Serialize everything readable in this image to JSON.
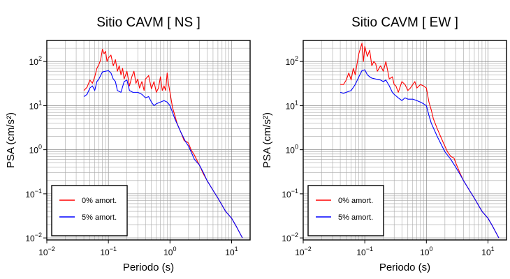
{
  "chart_data": [
    {
      "type": "line",
      "title": "Sitio CAVM [ NS ]",
      "xlabel": "Periodo (s)",
      "ylabel": "PSA (cm/s²)",
      "xscale": "log",
      "yscale": "log",
      "xlim": [
        0.01,
        20
      ],
      "ylim": [
        0.009,
        300
      ],
      "grid": true,
      "legend_position": "bottom-left",
      "xticks": [
        {
          "base": "10",
          "exp": "−2",
          "value": 0.01
        },
        {
          "base": "10",
          "exp": "−1",
          "value": 0.1
        },
        {
          "base": "10",
          "exp": "0",
          "value": 1
        },
        {
          "base": "10",
          "exp": "1",
          "value": 10
        }
      ],
      "yticks": [
        {
          "base": "10",
          "exp": "−2",
          "value": 0.01
        },
        {
          "base": "10",
          "exp": "−1",
          "value": 0.1
        },
        {
          "base": "10",
          "exp": "0",
          "value": 1
        },
        {
          "base": "10",
          "exp": "1",
          "value": 10
        },
        {
          "base": "10",
          "exp": "2",
          "value": 100
        }
      ],
      "series": [
        {
          "name": "0% amort.",
          "color": "#ff0000",
          "points": [
            [
              0.04,
              22
            ],
            [
              0.045,
              26
            ],
            [
              0.05,
              38
            ],
            [
              0.055,
              32
            ],
            [
              0.06,
              45
            ],
            [
              0.065,
              70
            ],
            [
              0.07,
              85
            ],
            [
              0.075,
              110
            ],
            [
              0.08,
              190
            ],
            [
              0.085,
              150
            ],
            [
              0.09,
              170
            ],
            [
              0.095,
              100
            ],
            [
              0.1,
              120
            ],
            [
              0.11,
              140
            ],
            [
              0.12,
              80
            ],
            [
              0.13,
              110
            ],
            [
              0.14,
              60
            ],
            [
              0.15,
              80
            ],
            [
              0.16,
              50
            ],
            [
              0.17,
              70
            ],
            [
              0.18,
              40
            ],
            [
              0.2,
              60
            ],
            [
              0.22,
              28
            ],
            [
              0.24,
              45
            ],
            [
              0.26,
              60
            ],
            [
              0.28,
              32
            ],
            [
              0.3,
              40
            ],
            [
              0.32,
              25
            ],
            [
              0.35,
              35
            ],
            [
              0.38,
              22
            ],
            [
              0.4,
              40
            ],
            [
              0.45,
              48
            ],
            [
              0.5,
              24
            ],
            [
              0.55,
              35
            ],
            [
              0.6,
              20
            ],
            [
              0.65,
              25
            ],
            [
              0.7,
              45
            ],
            [
              0.75,
              22
            ],
            [
              0.8,
              28
            ],
            [
              0.85,
              22
            ],
            [
              0.9,
              55
            ],
            [
              0.95,
              30
            ],
            [
              1.0,
              20
            ],
            [
              1.1,
              9
            ],
            [
              1.2,
              6
            ],
            [
              1.3,
              4
            ],
            [
              1.5,
              2.5
            ],
            [
              1.7,
              1.6
            ],
            [
              1.9,
              1.5
            ],
            [
              2.0,
              1.4
            ],
            [
              2.2,
              1.0
            ],
            [
              2.5,
              0.75
            ],
            [
              2.7,
              0.6
            ],
            [
              3.0,
              0.45
            ],
            [
              3.5,
              0.28
            ],
            [
              4.0,
              0.2
            ],
            [
              5.0,
              0.12
            ],
            [
              6.0,
              0.08
            ],
            [
              8.0,
              0.04
            ],
            [
              10.0,
              0.028
            ],
            [
              12.0,
              0.018
            ],
            [
              15.0,
              0.01
            ]
          ]
        },
        {
          "name": "5% amort.",
          "color": "#0000ff",
          "points": [
            [
              0.04,
              16
            ],
            [
              0.045,
              18
            ],
            [
              0.05,
              25
            ],
            [
              0.055,
              28
            ],
            [
              0.06,
              22
            ],
            [
              0.065,
              35
            ],
            [
              0.07,
              40
            ],
            [
              0.08,
              58
            ],
            [
              0.09,
              60
            ],
            [
              0.1,
              62
            ],
            [
              0.11,
              55
            ],
            [
              0.12,
              40
            ],
            [
              0.13,
              35
            ],
            [
              0.14,
              22
            ],
            [
              0.16,
              20
            ],
            [
              0.18,
              35
            ],
            [
              0.2,
              38
            ],
            [
              0.22,
              22
            ],
            [
              0.25,
              20
            ],
            [
              0.3,
              20
            ],
            [
              0.35,
              18
            ],
            [
              0.4,
              15
            ],
            [
              0.45,
              16
            ],
            [
              0.5,
              12
            ],
            [
              0.55,
              10
            ],
            [
              0.6,
              11
            ],
            [
              0.7,
              12
            ],
            [
              0.8,
              13
            ],
            [
              0.9,
              12
            ],
            [
              1.0,
              10
            ],
            [
              1.1,
              7
            ],
            [
              1.2,
              5
            ],
            [
              1.5,
              2.5
            ],
            [
              1.8,
              1.5
            ],
            [
              2.0,
              1.2
            ],
            [
              2.2,
              0.9
            ],
            [
              2.5,
              0.6
            ],
            [
              3.0,
              0.45
            ],
            [
              3.5,
              0.3
            ],
            [
              4.0,
              0.2
            ],
            [
              5.0,
              0.12
            ],
            [
              6.0,
              0.08
            ],
            [
              8.0,
              0.04
            ],
            [
              10.0,
              0.028
            ],
            [
              12.0,
              0.018
            ],
            [
              15.0,
              0.01
            ]
          ]
        }
      ]
    },
    {
      "type": "line",
      "title": "Sitio CAVM [ EW ]",
      "xlabel": "Periodo (s)",
      "ylabel": "PSA (cm/s²)",
      "xscale": "log",
      "yscale": "log",
      "xlim": [
        0.01,
        20
      ],
      "ylim": [
        0.009,
        300
      ],
      "grid": true,
      "legend_position": "bottom-left",
      "xticks": [
        {
          "base": "10",
          "exp": "−2",
          "value": 0.01
        },
        {
          "base": "10",
          "exp": "−1",
          "value": 0.1
        },
        {
          "base": "10",
          "exp": "0",
          "value": 1
        },
        {
          "base": "10",
          "exp": "1",
          "value": 10
        }
      ],
      "yticks": [
        {
          "base": "10",
          "exp": "−2",
          "value": 0.01
        },
        {
          "base": "10",
          "exp": "−1",
          "value": 0.1
        },
        {
          "base": "10",
          "exp": "0",
          "value": 1
        },
        {
          "base": "10",
          "exp": "1",
          "value": 10
        },
        {
          "base": "10",
          "exp": "2",
          "value": 100
        }
      ],
      "series": [
        {
          "name": "0% amort.",
          "color": "#ff0000",
          "points": [
            [
              0.04,
              30
            ],
            [
              0.045,
              30
            ],
            [
              0.05,
              38
            ],
            [
              0.055,
              55
            ],
            [
              0.06,
              38
            ],
            [
              0.065,
              70
            ],
            [
              0.07,
              50
            ],
            [
              0.075,
              90
            ],
            [
              0.08,
              150
            ],
            [
              0.085,
              200
            ],
            [
              0.09,
              260
            ],
            [
              0.095,
              100
            ],
            [
              0.1,
              220
            ],
            [
              0.11,
              130
            ],
            [
              0.12,
              180
            ],
            [
              0.13,
              80
            ],
            [
              0.14,
              100
            ],
            [
              0.15,
              90
            ],
            [
              0.16,
              60
            ],
            [
              0.17,
              70
            ],
            [
              0.18,
              80
            ],
            [
              0.2,
              60
            ],
            [
              0.22,
              100
            ],
            [
              0.25,
              40
            ],
            [
              0.28,
              45
            ],
            [
              0.3,
              30
            ],
            [
              0.32,
              28
            ],
            [
              0.35,
              20
            ],
            [
              0.4,
              35
            ],
            [
              0.45,
              30
            ],
            [
              0.5,
              22
            ],
            [
              0.55,
              25
            ],
            [
              0.6,
              30
            ],
            [
              0.65,
              35
            ],
            [
              0.7,
              25
            ],
            [
              0.8,
              30
            ],
            [
              0.9,
              28
            ],
            [
              1.0,
              25
            ],
            [
              1.1,
              12
            ],
            [
              1.2,
              8
            ],
            [
              1.3,
              5
            ],
            [
              1.5,
              3
            ],
            [
              1.7,
              2
            ],
            [
              1.9,
              1.4
            ],
            [
              2.0,
              1.2
            ],
            [
              2.2,
              0.9
            ],
            [
              2.5,
              0.7
            ],
            [
              2.8,
              0.65
            ],
            [
              3.0,
              0.5
            ],
            [
              3.5,
              0.3
            ],
            [
              4.0,
              0.2
            ],
            [
              5.0,
              0.12
            ],
            [
              6.0,
              0.08
            ],
            [
              8.0,
              0.04
            ],
            [
              10.0,
              0.028
            ],
            [
              12.0,
              0.018
            ],
            [
              15.0,
              0.01
            ]
          ]
        },
        {
          "name": "5% amort.",
          "color": "#0000ff",
          "points": [
            [
              0.04,
              20
            ],
            [
              0.045,
              19
            ],
            [
              0.05,
              20
            ],
            [
              0.06,
              22
            ],
            [
              0.07,
              30
            ],
            [
              0.08,
              45
            ],
            [
              0.09,
              62
            ],
            [
              0.1,
              65
            ],
            [
              0.11,
              50
            ],
            [
              0.12,
              45
            ],
            [
              0.13,
              42
            ],
            [
              0.15,
              40
            ],
            [
              0.18,
              38
            ],
            [
              0.2,
              35
            ],
            [
              0.22,
              38
            ],
            [
              0.25,
              28
            ],
            [
              0.28,
              20
            ],
            [
              0.3,
              18
            ],
            [
              0.35,
              15
            ],
            [
              0.4,
              13
            ],
            [
              0.45,
              15
            ],
            [
              0.5,
              14
            ],
            [
              0.6,
              14
            ],
            [
              0.7,
              13
            ],
            [
              0.8,
              12
            ],
            [
              0.9,
              11
            ],
            [
              1.0,
              10
            ],
            [
              1.1,
              6
            ],
            [
              1.2,
              4
            ],
            [
              1.5,
              2
            ],
            [
              1.8,
              1.2
            ],
            [
              2.0,
              0.9
            ],
            [
              2.5,
              0.6
            ],
            [
              3.0,
              0.4
            ],
            [
              3.5,
              0.28
            ],
            [
              4.0,
              0.2
            ],
            [
              5.0,
              0.12
            ],
            [
              6.0,
              0.08
            ],
            [
              8.0,
              0.04
            ],
            [
              10.0,
              0.028
            ],
            [
              12.0,
              0.018
            ],
            [
              15.0,
              0.01
            ]
          ]
        }
      ]
    }
  ]
}
